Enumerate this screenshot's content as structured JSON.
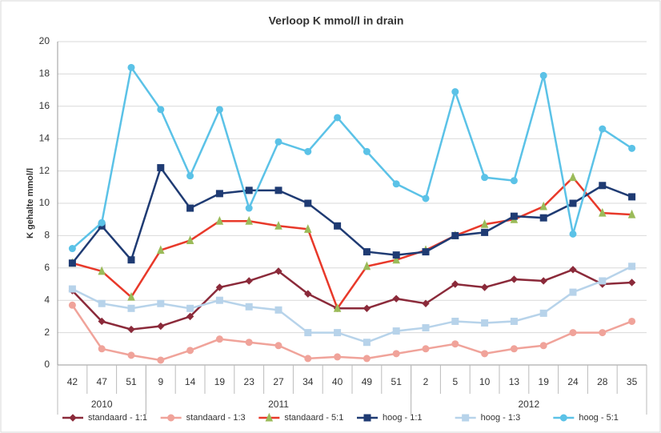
{
  "chart_data": {
    "type": "line",
    "title": "Verloop K mmol/l in drain",
    "y_label": "K gehalte mmol/l",
    "categories": [
      "42",
      "47",
      "51",
      "9",
      "14",
      "19",
      "23",
      "27",
      "34",
      "40",
      "49",
      "51",
      "2",
      "5",
      "10",
      "13",
      "19",
      "24",
      "28",
      "35"
    ],
    "x_groups": [
      {
        "label": "2010",
        "span": 3
      },
      {
        "label": "2011",
        "span": 9
      },
      {
        "label": "2012",
        "span": 8
      }
    ],
    "ylim": [
      0,
      20
    ],
    "yticks": [
      0,
      2,
      4,
      6,
      8,
      10,
      12,
      14,
      16,
      18,
      20
    ],
    "grid": true,
    "legend": "bottom",
    "series": [
      {
        "name": "standaard - 1:1",
        "color": "#8b2a3a",
        "marker": "diamond",
        "values": [
          4.6,
          2.7,
          2.2,
          2.4,
          3.0,
          4.8,
          5.2,
          5.8,
          4.4,
          3.5,
          3.5,
          4.1,
          3.8,
          5.0,
          4.8,
          5.3,
          5.2,
          5.9,
          5.0,
          5.1
        ]
      },
      {
        "name": "standaard - 1:3",
        "color": "#f0a39a",
        "marker": "circle",
        "values": [
          3.7,
          1.0,
          0.6,
          0.3,
          0.9,
          1.6,
          1.4,
          1.2,
          0.4,
          0.5,
          0.4,
          0.7,
          1.0,
          1.3,
          0.7,
          1.0,
          1.2,
          2.0,
          2.0,
          2.7
        ]
      },
      {
        "name": "standaard - 5:1",
        "color": "#e8392a",
        "marker_color": "#9bbb59",
        "marker": "triangle",
        "values": [
          6.3,
          5.8,
          4.2,
          7.1,
          7.7,
          8.9,
          8.9,
          8.6,
          8.4,
          3.5,
          6.1,
          6.5,
          7.1,
          8.0,
          8.7,
          9.0,
          9.8,
          11.6,
          9.4,
          9.3
        ]
      },
      {
        "name": "hoog - 1:1",
        "color": "#1f3b73",
        "marker": "square",
        "values": [
          6.3,
          8.6,
          6.5,
          12.2,
          9.7,
          10.6,
          10.8,
          10.8,
          10.0,
          8.6,
          7.0,
          6.8,
          7.0,
          8.0,
          8.2,
          9.2,
          9.1,
          10.0,
          11.1,
          10.4
        ]
      },
      {
        "name": "hoog - 1:3",
        "color": "#b7d3ea",
        "marker": "square",
        "values": [
          4.7,
          3.8,
          3.5,
          3.8,
          3.5,
          4.0,
          3.6,
          3.4,
          2.0,
          2.0,
          1.4,
          2.1,
          2.3,
          2.7,
          2.6,
          2.7,
          3.2,
          4.5,
          5.2,
          6.1
        ]
      },
      {
        "name": "hoog - 5:1",
        "color": "#5bc2e7",
        "marker": "circle",
        "values": [
          7.2,
          8.8,
          18.4,
          15.8,
          11.7,
          15.8,
          9.7,
          13.8,
          13.2,
          15.3,
          13.2,
          11.2,
          10.3,
          16.9,
          11.6,
          11.4,
          17.9,
          8.1,
          14.6,
          13.4
        ]
      }
    ]
  }
}
